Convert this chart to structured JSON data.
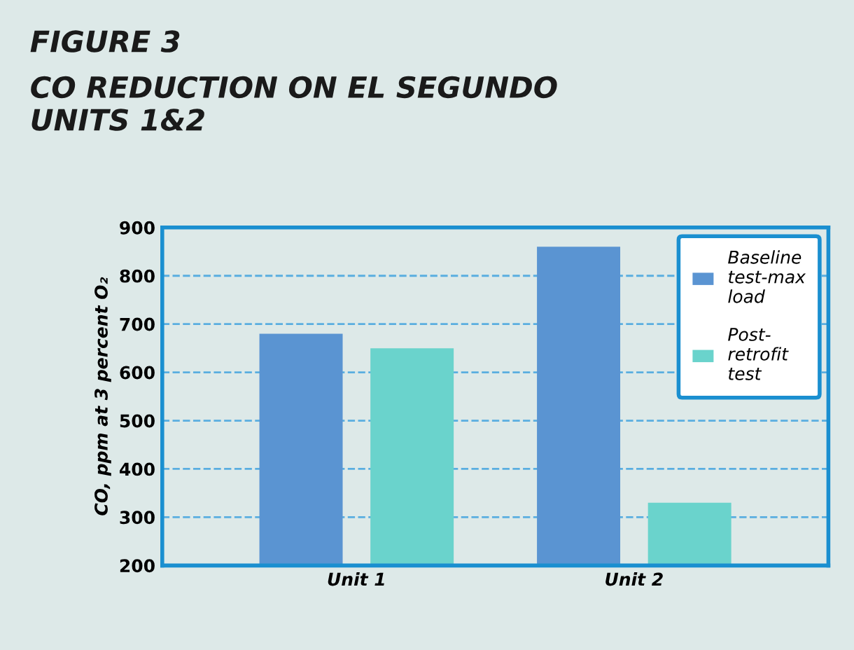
{
  "chart_data": {
    "type": "bar",
    "title": "FIGURE 3",
    "subtitle": "CO REDUCTION ON EL SEGUNDO\nUNITS 1&2",
    "ylabel": "CO, ppm at 3 percent O₂",
    "categories": [
      "Unit 1",
      "Unit 2"
    ],
    "series": [
      {
        "name": "Baseline\ntest-max\nload",
        "color": "#5a94d2",
        "values": [
          680,
          860
        ]
      },
      {
        "name": "Post-\nretrofit\ntest",
        "color": "#6ad3cc",
        "values": [
          650,
          330
        ]
      }
    ],
    "ylim": [
      200,
      900
    ],
    "yticks": [
      200,
      300,
      400,
      500,
      600,
      700,
      800,
      900
    ],
    "grid": "y",
    "legend": "top right"
  }
}
